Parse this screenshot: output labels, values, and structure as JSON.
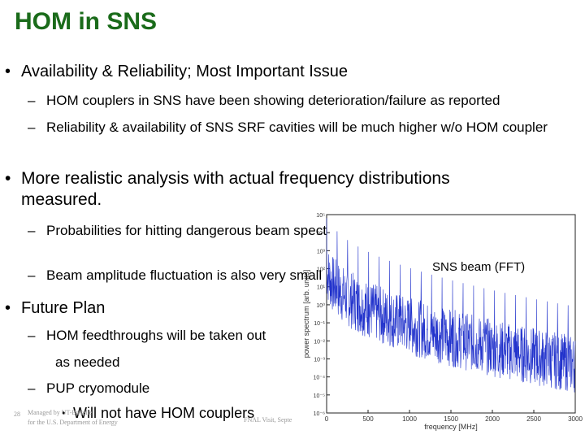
{
  "title": "HOM in SNS",
  "bullets": [
    {
      "text": "Availability & Reliability; Most Important Issue",
      "subs": [
        "HOM couplers in SNS have been showing deterioration/failure as reported",
        "Reliability & availability of SNS SRF cavities will be much higher w/o HOM coupler"
      ]
    },
    {
      "text": "More realistic analysis with actual frequency distributions measured.",
      "subs": [
        "Probabilities for hitting dangerous beam spectral lines are much less than expected.",
        "Beam amplitude fluctuation is also very small"
      ]
    },
    {
      "text": "Future Plan",
      "subs": [
        "HOM feedthroughs will be taken out",
        "as needed",
        "PUP cryomodule",
        "Will not have HOM couplers"
      ]
    }
  ],
  "chart_label": "SNS beam  (FFT)",
  "chart_data": {
    "type": "line",
    "title": "",
    "xlabel": "frequency [MHz]",
    "ylabel": "power spectrum [arb. units]",
    "x_ticks": [
      "0",
      "500",
      "1000",
      "1500",
      "2000",
      "2500",
      "3000"
    ],
    "y_ticks": [
      "10⁻⁶",
      "10⁻⁵",
      "10⁻⁴",
      "10⁻³",
      "10⁻²",
      "10⁻¹",
      "10⁰",
      "10¹",
      "10²",
      "10³",
      "10⁴",
      "10⁵"
    ],
    "xlim": [
      0,
      3000
    ],
    "ylim_log10": [
      -6,
      5
    ],
    "y_scale": "log",
    "series_color": "#2233cc"
  },
  "footer": {
    "page_number": "28",
    "managed_by": "Managed by UT-Battelle",
    "dept": "for the U.S. Department of Energy",
    "event": "FNAL Visit, Septe"
  }
}
